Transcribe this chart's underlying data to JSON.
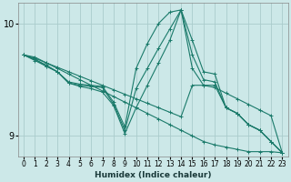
{
  "title": "",
  "xlabel": "Humidex (Indice chaleur)",
  "background_color": "#cce8e8",
  "grid_color": "#aacccc",
  "line_color": "#1a7a6a",
  "xlim": [
    -0.5,
    23.5
  ],
  "ylim": [
    8.82,
    10.18
  ],
  "yticks": [
    9,
    10
  ],
  "xticks": [
    0,
    1,
    2,
    3,
    4,
    5,
    6,
    7,
    8,
    9,
    10,
    11,
    12,
    13,
    14,
    15,
    16,
    17,
    18,
    19,
    20,
    21,
    22,
    23
  ],
  "series": [
    {
      "x": [
        0,
        1,
        2,
        3,
        4,
        5,
        6,
        7,
        8,
        9,
        10,
        11,
        12,
        13,
        14,
        15,
        16,
        17,
        18,
        19,
        20,
        21,
        22,
        23
      ],
      "y": [
        9.72,
        9.7,
        9.65,
        9.6,
        9.55,
        9.5,
        9.45,
        9.4,
        9.35,
        9.3,
        9.25,
        9.2,
        9.15,
        9.1,
        9.05,
        9.0,
        8.95,
        8.92,
        8.9,
        8.88,
        8.86,
        8.86,
        8.86,
        8.85
      ]
    },
    {
      "x": [
        0,
        1,
        2,
        3,
        4,
        5,
        6,
        7,
        8,
        9,
        10,
        11,
        12,
        13,
        14,
        15,
        16,
        17,
        18,
        19,
        20,
        21,
        22,
        23
      ],
      "y": [
        9.72,
        9.69,
        9.65,
        9.61,
        9.57,
        9.53,
        9.49,
        9.45,
        9.41,
        9.37,
        9.33,
        9.29,
        9.25,
        9.21,
        9.17,
        9.45,
        9.45,
        9.43,
        9.38,
        9.33,
        9.28,
        9.23,
        9.18,
        8.85
      ]
    },
    {
      "x": [
        0,
        1,
        2,
        3,
        4,
        5,
        6,
        7,
        8,
        9,
        10,
        11,
        12,
        13,
        14,
        15,
        16,
        17,
        18,
        19,
        20,
        21,
        22,
        23
      ],
      "y": [
        9.72,
        9.68,
        9.62,
        9.57,
        9.48,
        9.46,
        9.45,
        9.44,
        9.3,
        9.08,
        9.6,
        9.82,
        10.0,
        10.1,
        10.12,
        9.85,
        9.57,
        9.55,
        9.25,
        9.2,
        9.1,
        9.05,
        8.95,
        8.85
      ]
    },
    {
      "x": [
        0,
        1,
        2,
        3,
        4,
        5,
        6,
        7,
        8,
        9,
        10,
        11,
        12,
        13,
        14,
        15,
        16,
        17,
        18,
        19,
        20,
        21,
        22,
        23
      ],
      "y": [
        9.72,
        9.68,
        9.63,
        9.57,
        9.47,
        9.45,
        9.44,
        9.43,
        9.28,
        9.05,
        9.42,
        9.6,
        9.78,
        9.95,
        10.12,
        9.72,
        9.5,
        9.48,
        9.25,
        9.2,
        9.1,
        9.05,
        8.95,
        8.85
      ]
    },
    {
      "x": [
        0,
        1,
        2,
        3,
        4,
        5,
        6,
        7,
        8,
        9,
        10,
        11,
        12,
        13,
        14,
        15,
        16,
        17,
        18,
        19,
        20,
        21,
        22,
        23
      ],
      "y": [
        9.72,
        9.67,
        9.62,
        9.57,
        9.47,
        9.44,
        9.42,
        9.39,
        9.27,
        9.02,
        9.25,
        9.45,
        9.65,
        9.85,
        10.12,
        9.6,
        9.45,
        9.45,
        9.25,
        9.2,
        9.1,
        9.05,
        8.95,
        8.85
      ]
    }
  ]
}
